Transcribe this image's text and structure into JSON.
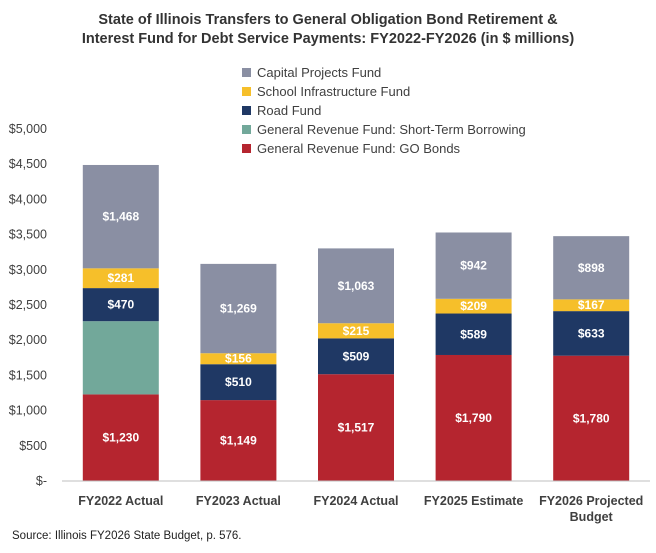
{
  "chart_data": {
    "type": "bar",
    "stacked": true,
    "title_lines": [
      "State of Illinois Transfers to General Obligation Bond Retirement &",
      "Interest Fund for Debt Service Payments: FY2022-FY2026  (in $ millions)"
    ],
    "categories": [
      [
        "FY2022 Actual"
      ],
      [
        "FY2023 Actual"
      ],
      [
        "FY2024 Actual"
      ],
      [
        "FY2025 Estimate"
      ],
      [
        "FY2026 Projected",
        "Budget"
      ]
    ],
    "series": [
      {
        "name": "General Revenue Fund: GO Bonds",
        "color": "#b5252f",
        "values": [
          1230,
          1149,
          1517,
          1790,
          1780
        ],
        "labels": [
          "$1,230",
          "$1,149",
          "$1,517",
          "$1,790",
          "$1,780"
        ]
      },
      {
        "name": "General Revenue Fund: Short-Term Borrowing",
        "color": "#72a89a",
        "values": [
          1040,
          0,
          0,
          0,
          0
        ],
        "labels": [
          "",
          "",
          "",
          "",
          ""
        ]
      },
      {
        "name": "Road Fund",
        "color": "#1f3864",
        "values": [
          470,
          510,
          509,
          589,
          633
        ],
        "labels": [
          "$470",
          "$510",
          "$509",
          "$589",
          "$633"
        ]
      },
      {
        "name": "School Infrastructure Fund",
        "color": "#f6bf2a",
        "values": [
          281,
          156,
          215,
          209,
          167
        ],
        "labels": [
          "$281",
          "$156",
          "$215",
          "$209",
          "$167"
        ]
      },
      {
        "name": "Capital Projects Fund",
        "color": "#8a8fa3",
        "values": [
          1468,
          1269,
          1063,
          942,
          898
        ],
        "labels": [
          "$1,468",
          "$1,269",
          "$1,063",
          "$942",
          "$898"
        ]
      }
    ],
    "legend_order": [
      4,
      3,
      2,
      1,
      0
    ],
    "legend_position": "top-center",
    "ylim": [
      0,
      5000
    ],
    "yticks": [
      0,
      500,
      1000,
      1500,
      2000,
      2500,
      3000,
      3500,
      4000,
      4500,
      5000
    ],
    "ytick_labels": [
      "$-",
      "$500",
      "$1,000",
      "$1,500",
      "$2,000",
      "$2,500",
      "$3,000",
      "$3,500",
      "$4,000",
      "$4,500",
      "$5,000"
    ],
    "grid": false
  },
  "source": "Source: Illinois FY2026 State Budget, p. 576."
}
